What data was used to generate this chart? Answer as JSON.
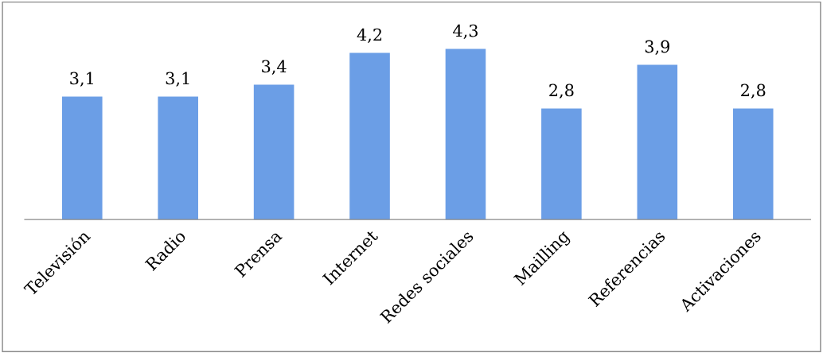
{
  "chart_data": {
    "type": "bar",
    "categories": [
      "Televisión",
      "Radio",
      "Prensa",
      "Internet",
      "Redes sociales",
      "Mailling",
      "Referencias",
      "Activaciones"
    ],
    "values": [
      3.1,
      3.1,
      3.4,
      4.2,
      4.3,
      2.8,
      3.9,
      2.8
    ],
    "color": "#6b9ee6",
    "value_labels": [
      "3,1",
      "3,1",
      "3,4",
      "4,2",
      "4,3",
      "2,8",
      "3,9",
      "2,8"
    ],
    "grid": false,
    "legend": false
  }
}
